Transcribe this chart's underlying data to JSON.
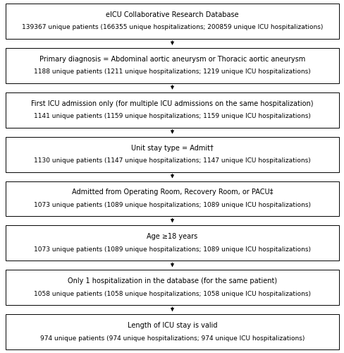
{
  "boxes": [
    {
      "line1": "eICU Collaborative Research Database",
      "line2": "139367 unique patients (166355 unique hospitalizations; 200859 unique ICU hospitalizations)"
    },
    {
      "line1": "Primary diagnosis = Abdominal aortic aneurysm or Thoracic aortic aneurysm",
      "line2": "1188 unique patients (1211 unique hospitalizations; 1219 unique ICU hospitalizations)"
    },
    {
      "line1": "First ICU admission only (for multiple ICU admissions on the same hospitalization)",
      "line2": "1141 unique patients (1159 unique hospitalizations; 1159 unique ICU hospitalizations)"
    },
    {
      "line1": "Unit stay type = Admit†",
      "line2": "1130 unique patients (1147 unique hospitalizations; 1147 unique ICU hospitalizations)"
    },
    {
      "line1": "Admitted from Operating Room, Recovery Room, or PACU‡",
      "line2": "1073 unique patients (1089 unique hospitalizations; 1089 unique ICU hospitalizations)"
    },
    {
      "line1": "Age ≥18 years",
      "line2": "1073 unique patients (1089 unique hospitalizations; 1089 unique ICU hospitalizations)"
    },
    {
      "line1": "Only 1 hospitalization in the database (for the same patient)",
      "line2": "1058 unique patients (1058 unique hospitalizations; 1058 unique ICU hospitalizations)"
    },
    {
      "line1": "Length of ICU stay is valid",
      "line2": "974 unique patients (974 unique hospitalizations; 974 unique ICU hospitalizations)"
    }
  ],
  "box_color": "#ffffff",
  "border_color": "#000000",
  "arrow_color": "#000000",
  "background_color": "#ffffff",
  "font_size_line1": 7.0,
  "font_size_line2": 6.5,
  "fig_width": 4.89,
  "fig_height": 5.0,
  "dpi": 100
}
